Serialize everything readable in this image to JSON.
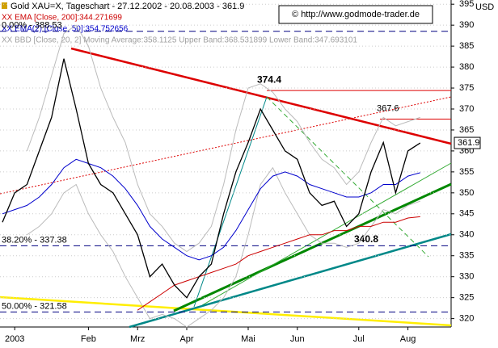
{
  "chart_data": {
    "type": "line",
    "title": "Gold XAU=X, Tageschart - 27.12.2002 - 20.08.2003 - 361.9",
    "indicators": [
      {
        "text": "XX EMA [Close, 200]:344.271699",
        "color": "#cc0000"
      },
      {
        "text": "XX EMA(2) [Close, 50]:354.752656",
        "color": "#0000cc"
      },
      {
        "text": "XX BBD [Close, 20, 2] Moving Average:358.1125 Upper Band:368.531899 Lower Band:347.693101",
        "color": "#a0a0a0"
      }
    ],
    "copyright": "© http://www.godmode-trader.de",
    "y_unit": "USD",
    "categories": [
      null,
      "2003",
      null,
      null,
      null,
      null,
      null,
      "Feb",
      null,
      null,
      null,
      "Mrz",
      null,
      null,
      null,
      "Apr",
      null,
      null,
      null,
      null,
      "Mai",
      null,
      null,
      null,
      "Jun",
      null,
      null,
      null,
      null,
      "Jul",
      null,
      null,
      null,
      "Aug",
      null
    ],
    "series": [
      {
        "color": "#bbbbbb",
        "values": [
          null,
          null,
          360,
          368,
          378,
          388,
          390,
          385,
          375,
          368,
          362,
          352,
          345,
          342,
          338,
          336,
          338,
          342,
          352,
          365,
          375,
          376,
          374,
          370,
          367,
          362,
          358,
          356,
          352,
          355,
          362,
          368,
          366,
          367,
          368
        ]
      },
      {
        "color": "#bbbbbb",
        "values": [
          null,
          null,
          340,
          342,
          345,
          350,
          352,
          345,
          340,
          336,
          330,
          325,
          320,
          321,
          320,
          318,
          320,
          322,
          325,
          330,
          340,
          352,
          356,
          350,
          345,
          340,
          338,
          338,
          337,
          338,
          342,
          346,
          345,
          347,
          348
        ]
      },
      {
        "color": "#cc0000",
        "values": [
          null,
          null,
          null,
          null,
          null,
          null,
          null,
          null,
          null,
          null,
          null,
          322,
          324,
          326,
          328,
          329,
          330,
          331,
          332,
          333,
          335,
          336,
          337,
          338,
          339,
          340,
          340,
          341,
          341,
          342,
          342,
          343,
          343,
          344,
          344.3
        ]
      },
      {
        "color": "#0000cc",
        "values": [
          345,
          346,
          347,
          349,
          352,
          356,
          358,
          357,
          356,
          354,
          351,
          347,
          342,
          339,
          337,
          335,
          334,
          335,
          337,
          341,
          346,
          351,
          354,
          355,
          354,
          352,
          351,
          350,
          349,
          349,
          350,
          352,
          352,
          354,
          354.8
        ]
      },
      {
        "color": "#000000",
        "values": [
          343,
          350,
          352,
          360,
          368,
          382,
          370,
          357,
          352,
          350,
          345,
          340,
          330,
          333,
          328,
          325,
          330,
          333,
          345,
          355,
          362,
          370,
          365,
          360,
          358,
          350,
          347,
          348,
          342,
          345,
          355,
          362,
          350,
          360,
          361.9
        ]
      }
    ],
    "ylim": [
      318,
      396
    ],
    "yticks": [
      320,
      325,
      330,
      335,
      340,
      345,
      350,
      355,
      360,
      365,
      370,
      375,
      380,
      385,
      390,
      395
    ],
    "grid": true,
    "levels": [
      {
        "value": 388.53,
        "label": "0.00% - 388.53"
      },
      {
        "value": 337.38,
        "label": "38.20% - 337.38"
      },
      {
        "value": 321.58,
        "label": "50.00% - 321.58"
      }
    ],
    "resistance": [
      374.4,
      367.6
    ],
    "low_label": 340.8,
    "last_price": 361.9
  }
}
